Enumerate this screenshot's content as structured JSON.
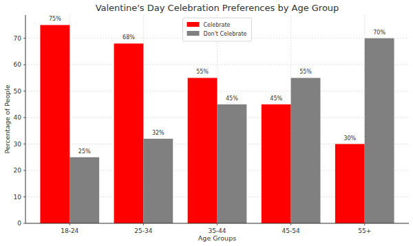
{
  "chart_data": {
    "type": "bar",
    "title": "Valentine's Day Celebration Preferences by Age Group",
    "x_label": "Age Groups",
    "y_label": "Percentage of People",
    "categories": [
      "18-24",
      "25-34",
      "35-44",
      "45-54",
      "55+"
    ],
    "series": [
      {
        "name": "Celebrate",
        "color": "#ff0000",
        "values": [
          75,
          68,
          55,
          45,
          30
        ],
        "value_labels": [
          "75%",
          "68%",
          "55%",
          "45%",
          "30%"
        ]
      },
      {
        "name": "Don't Celebrate",
        "color": "#808080",
        "values": [
          25,
          32,
          45,
          55,
          70
        ],
        "value_labels": [
          "25%",
          "32%",
          "45%",
          "55%",
          "70%"
        ]
      }
    ],
    "ylim": [
      0,
      78.75
    ],
    "yticks": [
      0,
      10,
      20,
      30,
      40,
      50,
      60,
      70
    ],
    "grid": true,
    "legend": "upper center",
    "data_labels": true
  }
}
